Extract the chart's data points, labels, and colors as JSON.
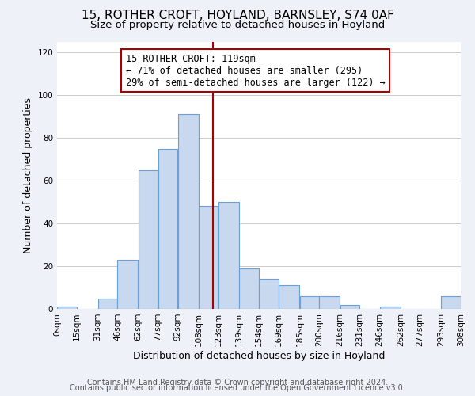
{
  "title": "15, ROTHER CROFT, HOYLAND, BARNSLEY, S74 0AF",
  "subtitle": "Size of property relative to detached houses in Hoyland",
  "xlabel": "Distribution of detached houses by size in Hoyland",
  "ylabel": "Number of detached properties",
  "bar_color": "#c8d8ee",
  "bar_edge_color": "#6a9fd8",
  "bins": [
    0,
    15,
    31,
    46,
    62,
    77,
    92,
    108,
    123,
    139,
    154,
    169,
    185,
    200,
    216,
    231,
    246,
    262,
    277,
    293,
    308
  ],
  "counts": [
    1,
    0,
    5,
    23,
    65,
    75,
    91,
    48,
    50,
    19,
    14,
    11,
    6,
    6,
    2,
    0,
    1,
    0,
    0,
    6
  ],
  "tick_labels": [
    "0sqm",
    "15sqm",
    "31sqm",
    "46sqm",
    "62sqm",
    "77sqm",
    "92sqm",
    "108sqm",
    "123sqm",
    "139sqm",
    "154sqm",
    "169sqm",
    "185sqm",
    "200sqm",
    "216sqm",
    "231sqm",
    "246sqm",
    "262sqm",
    "277sqm",
    "293sqm",
    "308sqm"
  ],
  "ylim": [
    0,
    125
  ],
  "yticks": [
    0,
    20,
    40,
    60,
    80,
    100,
    120
  ],
  "vline_x": 119,
  "vline_color": "#aa0000",
  "annotation_line1": "15 ROTHER CROFT: 119sqm",
  "annotation_line2": "← 71% of detached houses are smaller (295)",
  "annotation_line3": "29% of semi-detached houses are larger (122) →",
  "footer_line1": "Contains HM Land Registry data © Crown copyright and database right 2024.",
  "footer_line2": "Contains public sector information licensed under the Open Government Licence v3.0.",
  "bg_color": "#eef2f8",
  "plot_bg_color": "#ffffff",
  "title_fontsize": 11,
  "subtitle_fontsize": 9.5,
  "axis_label_fontsize": 9,
  "tick_fontsize": 7.5,
  "footer_fontsize": 7,
  "annot_fontsize": 8.5
}
